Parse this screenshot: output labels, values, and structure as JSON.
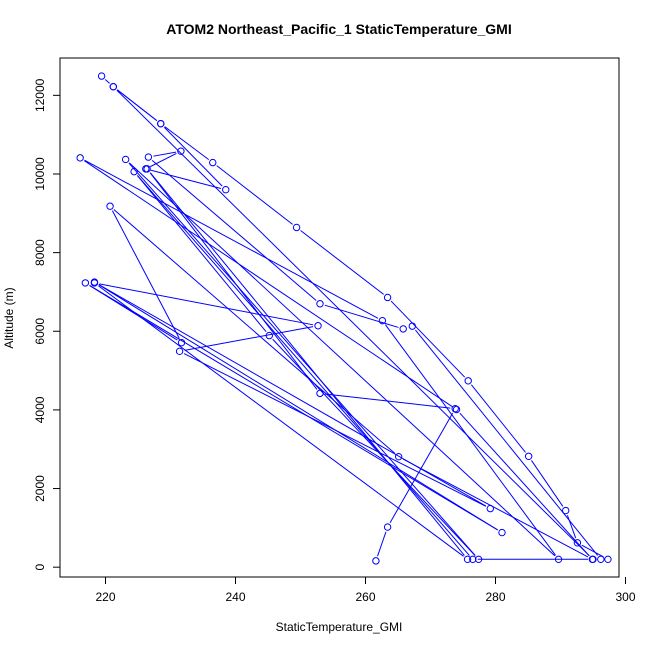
{
  "chart_data": {
    "type": "line",
    "title": "ATOM2 Northeast_Pacific_1 StaticTemperature_GMI",
    "xlabel": "StaticTemperature_GMI",
    "ylabel": "Altitude (m)",
    "xlim": [
      213,
      299
    ],
    "ylim": [
      -250,
      12950
    ],
    "xticks": [
      220,
      240,
      260,
      280,
      300
    ],
    "yticks": [
      0,
      2000,
      4000,
      6000,
      8000,
      10000,
      12000
    ],
    "xtick_labels": [
      "220",
      "240",
      "260",
      "280",
      "300"
    ],
    "ytick_labels": [
      "0",
      "2000",
      "4000",
      "6000",
      "8000",
      "10000",
      "12000"
    ],
    "grid": false,
    "series_color": "#0000ff",
    "series": [
      {
        "x": [
          219.4,
          221.2,
          228.5,
          236.5,
          249.4,
          263.4,
          275.8,
          285.1,
          290.8,
          292.6,
          297.3,
          296.2,
          267.2,
          265.8,
          253.0,
          226.6,
          231.6,
          226.2,
          238.5,
          228.5,
          221.2,
          295.0,
          276.5,
          224.4,
          245.2,
          277.4,
          223.1,
          289.7,
          262.6,
          216.1,
          274.0,
          294.9,
          265.1,
          220.7,
          231.7,
          216.9,
          281.0,
          218.3,
          279.2,
          231.4,
          252.7,
          218.3,
          275.7,
          226.4,
          253.0,
          273.8,
          263.4,
          261.6
        ],
        "y": [
          12490,
          12220,
          11280,
          10290,
          8640,
          6860,
          4740,
          2820,
          1440,
          620,
          200,
          200,
          6130,
          6060,
          6700,
          10430,
          10580,
          10130,
          9600,
          11280,
          12220,
          200,
          200,
          10060,
          5890,
          200,
          10370,
          200,
          6270,
          10410,
          4010,
          200,
          2810,
          9180,
          5710,
          7230,
          880,
          7250,
          1490,
          5490,
          6140,
          7230,
          200,
          10130,
          4420,
          4030,
          1020,
          160
        ]
      }
    ]
  }
}
